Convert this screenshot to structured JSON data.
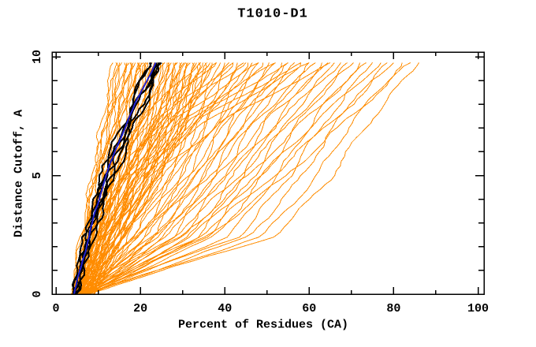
{
  "window": {
    "title": "T1010-D1"
  },
  "colors": {
    "background": "#FFFFFF",
    "axis": "#000000",
    "prediction_orange": "#FF8C00",
    "highlight_black": "#000000",
    "highlight_blue": "#2222CC"
  },
  "chart_data": {
    "type": "line",
    "title": "T1010-D1",
    "xlabel": "Percent of Residues (CA)",
    "ylabel": "Distance Cutoff, A",
    "xlim": [
      0,
      101.5
    ],
    "ylim": [
      0,
      10.25
    ],
    "grid": false,
    "legend": "none",
    "x_major_ticks": [
      0,
      20,
      40,
      60,
      80,
      100
    ],
    "x_minor_ticks": [
      10,
      30,
      50,
      70,
      90
    ],
    "y_major_ticks": [
      0,
      5,
      10
    ],
    "y_minor_ticks": [
      1,
      2,
      3,
      4,
      6,
      7,
      8,
      9
    ],
    "curve_y_anchors": [
      0,
      2.45,
      4.9,
      7.35,
      9.75
    ],
    "series_groups": [
      {
        "name": "prediction-models",
        "color": "#FF8C00",
        "stroke_width": 1,
        "wiggle": 0.55,
        "curves": [
          [
            3.8,
            6.0,
            8.5,
            11.0,
            13.5
          ],
          [
            4.0,
            6.5,
            9.0,
            11.8,
            14.2
          ],
          [
            4.2,
            7.0,
            9.8,
            12.5,
            15.0
          ],
          [
            3.6,
            6.2,
            9.2,
            12.2,
            15.6
          ],
          [
            4.5,
            7.5,
            10.5,
            13.5,
            16.2
          ],
          [
            4.0,
            7.0,
            10.0,
            13.2,
            16.8
          ],
          [
            4.8,
            8.0,
            11.2,
            14.5,
            17.4
          ],
          [
            4.2,
            7.2,
            10.8,
            14.2,
            17.8
          ],
          [
            5.0,
            8.5,
            12.0,
            15.5,
            18.3
          ],
          [
            4.4,
            7.8,
            11.5,
            15.2,
            18.8
          ],
          [
            5.2,
            9.0,
            12.8,
            16.2,
            19.3
          ],
          [
            4.6,
            8.2,
            12.2,
            16.0,
            19.8
          ],
          [
            5.5,
            9.5,
            13.5,
            17.0,
            20.2
          ],
          [
            4.8,
            8.8,
            13.0,
            17.0,
            20.8
          ],
          [
            5.8,
            10.0,
            14.2,
            18.0,
            21.3
          ],
          [
            5.0,
            9.2,
            13.8,
            18.0,
            21.8
          ],
          [
            6.0,
            10.5,
            15.0,
            19.0,
            22.3
          ],
          [
            5.2,
            9.8,
            14.5,
            19.0,
            22.8
          ],
          [
            6.2,
            11.0,
            15.8,
            19.8,
            23.3
          ],
          [
            5.4,
            10.2,
            15.2,
            20.0,
            23.8
          ],
          [
            6.5,
            11.5,
            16.5,
            20.8,
            24.3
          ],
          [
            5.6,
            10.8,
            16.0,
            21.0,
            24.8
          ],
          [
            6.8,
            12.0,
            17.2,
            21.8,
            25.3
          ],
          [
            5.8,
            11.2,
            16.8,
            22.0,
            25.8
          ],
          [
            7.0,
            12.5,
            18.0,
            22.8,
            26.3
          ],
          [
            6.0,
            11.8,
            17.5,
            22.8,
            26.8
          ],
          [
            7.2,
            13.0,
            18.8,
            23.8,
            27.3
          ],
          [
            6.2,
            12.2,
            18.2,
            23.8,
            27.8
          ],
          [
            7.5,
            13.5,
            19.5,
            24.6,
            28.3
          ],
          [
            6.4,
            12.8,
            19.0,
            24.8,
            28.8
          ],
          [
            7.8,
            14.0,
            20.2,
            25.5,
            29.3
          ],
          [
            6.6,
            13.2,
            19.8,
            25.8,
            29.8
          ],
          [
            8.0,
            14.5,
            21.0,
            26.4,
            30.3
          ],
          [
            6.8,
            13.8,
            20.5,
            26.8,
            30.8
          ],
          [
            8.2,
            15.0,
            21.8,
            27.2,
            31.3
          ],
          [
            7.0,
            14.2,
            21.2,
            27.6,
            31.8
          ],
          [
            8.5,
            15.5,
            22.5,
            28.2,
            32.3
          ],
          [
            7.2,
            14.8,
            22.0,
            28.5,
            32.8
          ],
          [
            8.8,
            16.0,
            23.2,
            29.0,
            33.3
          ],
          [
            7.4,
            15.2,
            22.8,
            29.5,
            33.8
          ],
          [
            9.0,
            16.5,
            24.0,
            30.0,
            34.3
          ],
          [
            7.6,
            15.8,
            23.5,
            30.4,
            34.8
          ],
          [
            9.2,
            17.0,
            24.8,
            31.0,
            35.3
          ],
          [
            7.8,
            16.2,
            24.2,
            31.2,
            35.8
          ],
          [
            5.0,
            10.0,
            16.0,
            25.0,
            36.5
          ],
          [
            5.5,
            16.0,
            25.0,
            31.0,
            37.0
          ],
          [
            4.5,
            12.0,
            20.0,
            28.0,
            38.0
          ],
          [
            6.0,
            18.0,
            26.5,
            33.0,
            39.0
          ],
          [
            5.0,
            13.0,
            22.0,
            30.5,
            40.0
          ],
          [
            6.5,
            20.0,
            28.0,
            34.5,
            41.0
          ],
          [
            4.8,
            14.0,
            23.5,
            32.0,
            42.0
          ],
          [
            7.0,
            21.5,
            29.5,
            36.0,
            43.0
          ],
          [
            5.2,
            15.0,
            25.0,
            34.0,
            44.5
          ],
          [
            7.5,
            23.0,
            31.0,
            38.0,
            45.5
          ],
          [
            5.4,
            16.5,
            27.0,
            36.0,
            46.5
          ],
          [
            8.0,
            24.5,
            33.0,
            40.0,
            48.0
          ],
          [
            5.6,
            18.0,
            29.0,
            38.5,
            49.0
          ],
          [
            7.8,
            26.0,
            35.0,
            42.0,
            50.5
          ],
          [
            5.8,
            19.0,
            31.0,
            41.0,
            52.0
          ],
          [
            6.8,
            28.0,
            37.0,
            44.5,
            53.5
          ],
          [
            6.0,
            20.0,
            33.0,
            43.0,
            55.0
          ],
          [
            7.2,
            30.0,
            39.5,
            47.0,
            56.5
          ],
          [
            6.2,
            21.0,
            34.5,
            45.0,
            58.0
          ],
          [
            7.6,
            32.0,
            42.0,
            50.0,
            60.0
          ],
          [
            6.4,
            22.5,
            36.0,
            47.5,
            61.5
          ],
          [
            7.4,
            34.0,
            44.0,
            52.5,
            63.0
          ],
          [
            6.6,
            24.0,
            38.0,
            50.0,
            64.5
          ],
          [
            7.8,
            36.0,
            46.5,
            55.0,
            66.0
          ],
          [
            5.0,
            26.0,
            40.0,
            53.0,
            67.5
          ],
          [
            7.0,
            38.0,
            49.0,
            58.0,
            69.0
          ],
          [
            5.5,
            28.0,
            43.0,
            56.0,
            70.5
          ],
          [
            7.5,
            41.0,
            52.0,
            61.0,
            72.0
          ],
          [
            6.0,
            30.0,
            45.0,
            59.0,
            73.5
          ],
          [
            7.0,
            43.5,
            55.0,
            64.0,
            75.0
          ],
          [
            6.5,
            32.0,
            48.0,
            62.0,
            77.0
          ],
          [
            7.5,
            46.0,
            58.0,
            67.0,
            78.5
          ],
          [
            5.8,
            34.0,
            51.0,
            65.5,
            80.0
          ],
          [
            6.8,
            49.0,
            61.5,
            70.5,
            82.0
          ],
          [
            6.2,
            36.0,
            54.0,
            69.0,
            84.0
          ],
          [
            7.2,
            52.0,
            65.0,
            74.5,
            86.0
          ],
          [
            4.5,
            9.0,
            14.0,
            24.0,
            42.0
          ],
          [
            5.0,
            10.0,
            16.0,
            28.0,
            48.0
          ],
          [
            4.8,
            9.5,
            15.0,
            26.0,
            45.0
          ],
          [
            5.2,
            11.0,
            18.0,
            32.0,
            55.0
          ],
          [
            5.5,
            12.0,
            20.0,
            36.0,
            60.0
          ],
          [
            4.6,
            8.5,
            13.0,
            22.0,
            38.0
          ],
          [
            5.8,
            13.0,
            22.0,
            40.0,
            65.0
          ],
          [
            5.1,
            10.5,
            17.0,
            30.0,
            52.0
          ],
          [
            4.4,
            8.0,
            12.5,
            20.0,
            34.0
          ],
          [
            5.3,
            11.5,
            19.0,
            34.0,
            58.0
          ],
          [
            4.1,
            6.8,
            9.4,
            12.0,
            14.6
          ],
          [
            4.9,
            8.6,
            12.4,
            16.4,
            19.6
          ],
          [
            5.3,
            9.4,
            14.0,
            18.4,
            21.6
          ],
          [
            5.7,
            10.6,
            15.4,
            20.4,
            24.6
          ],
          [
            6.1,
            11.4,
            17.0,
            22.4,
            26.6
          ],
          [
            6.6,
            12.4,
            18.4,
            24.0,
            28.6
          ],
          [
            7.1,
            13.4,
            19.8,
            25.2,
            30.6
          ],
          [
            4.35,
            7.6,
            11.0,
            14.6,
            17.6
          ],
          [
            5.05,
            9.0,
            13.2,
            17.6,
            20.6
          ],
          [
            5.45,
            10.0,
            14.8,
            19.6,
            23.6
          ]
        ]
      },
      {
        "name": "highlighted-models",
        "color": "#000000",
        "stroke_width": 2,
        "wiggle": 0.75,
        "curves": [
          [
            4.2,
            7.4,
            11.0,
            16.2,
            22.6
          ],
          [
            4.5,
            8.2,
            12.2,
            17.8,
            24.2
          ],
          [
            4.1,
            7.0,
            11.8,
            18.6,
            25.0
          ],
          [
            4.7,
            8.8,
            12.8,
            16.6,
            22.2
          ],
          [
            4.4,
            7.6,
            10.6,
            17.4,
            23.8
          ],
          [
            4.3,
            8.4,
            13.4,
            19.4,
            24.6
          ]
        ]
      },
      {
        "name": "selected-model",
        "color": "#2222CC",
        "stroke_width": 2,
        "wiggle": 0.12,
        "curves": [
          [
            4.3,
            7.8,
            11.6,
            17.0,
            23.6
          ]
        ]
      }
    ]
  }
}
